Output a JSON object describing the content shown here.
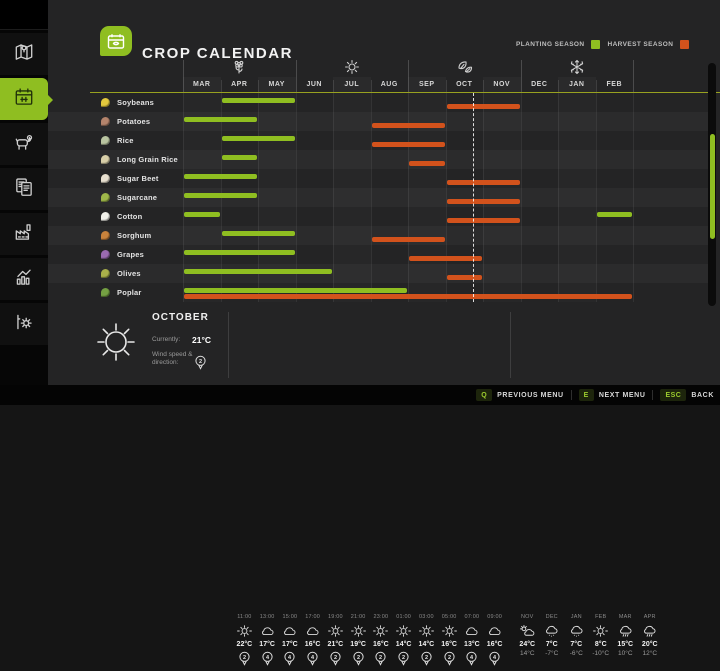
{
  "app": {
    "title": "CROP CALENDAR"
  },
  "colors": {
    "accent_green": "#8fbe21",
    "harvest_orange": "#d2521c",
    "panel_bg": "#242425",
    "sidebar_bg": "#060606"
  },
  "sidebar": {
    "items": [
      {
        "name": "map",
        "active": false
      },
      {
        "name": "calendar",
        "active": true
      },
      {
        "name": "animals",
        "active": false
      },
      {
        "name": "contracts",
        "active": false
      },
      {
        "name": "production",
        "active": false
      },
      {
        "name": "statistics",
        "active": false
      },
      {
        "name": "settings",
        "active": false
      }
    ]
  },
  "legend": {
    "planting": "PLANTING SEASON",
    "harvest": "HARVEST SEASON"
  },
  "months": [
    "MAR",
    "APR",
    "MAY",
    "JUN",
    "JUL",
    "AUG",
    "SEP",
    "OCT",
    "NOV",
    "DEC",
    "JAN",
    "FEB"
  ],
  "seasons": [
    {
      "icon": "spring-flower-icon",
      "month": "APR"
    },
    {
      "icon": "summer-sun-icon",
      "month": "JUL"
    },
    {
      "icon": "autumn-leaves-icon",
      "month": "OCT"
    },
    {
      "icon": "winter-snowflake-icon",
      "month": "JAN"
    }
  ],
  "current_marker": {
    "month": "OCT",
    "fraction": 0.73
  },
  "crops": [
    {
      "name": "Soybeans",
      "icon_color": "#e3c83e",
      "planting": [
        [
          "APR",
          "MAY"
        ]
      ],
      "harvest": [
        [
          "OCT",
          "NOV"
        ]
      ]
    },
    {
      "name": "Potatoes",
      "icon_color": "#b4846c",
      "planting": [
        [
          "MAR",
          "APR"
        ]
      ],
      "harvest": [
        [
          "AUG",
          "SEP"
        ]
      ]
    },
    {
      "name": "Rice",
      "icon_color": "#b9c4a0",
      "planting": [
        [
          "APR",
          "MAY"
        ]
      ],
      "harvest": [
        [
          "AUG",
          "SEP"
        ]
      ]
    },
    {
      "name": "Long Grain Rice",
      "icon_color": "#d8cfa8",
      "planting": [
        [
          "APR",
          "APR"
        ]
      ],
      "harvest": [
        [
          "SEP",
          "SEP"
        ]
      ]
    },
    {
      "name": "Sugar Beet",
      "icon_color": "#e8e0d0",
      "planting": [
        [
          "MAR",
          "APR"
        ]
      ],
      "harvest": [
        [
          "OCT",
          "NOV"
        ]
      ]
    },
    {
      "name": "Sugarcane",
      "icon_color": "#9fb84a",
      "planting": [
        [
          "MAR",
          "APR"
        ]
      ],
      "harvest": [
        [
          "OCT",
          "NOV"
        ]
      ]
    },
    {
      "name": "Cotton",
      "icon_color": "#f0f0ea",
      "planting": [
        [
          "MAR",
          "MAR"
        ],
        [
          "FEB",
          "FEB"
        ]
      ],
      "harvest": [
        [
          "OCT",
          "NOV"
        ]
      ]
    },
    {
      "name": "Sorghum",
      "icon_color": "#c8823c",
      "planting": [
        [
          "APR",
          "MAY"
        ]
      ],
      "harvest": [
        [
          "AUG",
          "SEP"
        ]
      ]
    },
    {
      "name": "Grapes",
      "icon_color": "#9a6ab0",
      "planting": [
        [
          "MAR",
          "MAY"
        ]
      ],
      "harvest": [
        [
          "SEP",
          "OCT"
        ]
      ]
    },
    {
      "name": "Olives",
      "icon_color": "#aab04a",
      "planting": [
        [
          "MAR",
          "JUN"
        ]
      ],
      "harvest": [
        [
          "OCT",
          "OCT"
        ]
      ]
    },
    {
      "name": "Poplar",
      "icon_color": "#74a043",
      "planting": [
        [
          "MAR",
          "AUG"
        ]
      ],
      "harvest": [
        [
          "MAR",
          "FEB"
        ]
      ]
    }
  ],
  "weather": {
    "month": "OCTOBER",
    "currently_label": "Currently:",
    "currently_value": "21°C",
    "wind_label": "Wind speed & direction:",
    "wind_value": "2",
    "hourly": [
      {
        "time": "11:00",
        "icon": "sun",
        "temp": "22°C",
        "wind": "2"
      },
      {
        "time": "13:00",
        "icon": "cloud",
        "temp": "17°C",
        "wind": "4"
      },
      {
        "time": "15:00",
        "icon": "cloud",
        "temp": "17°C",
        "wind": "4"
      },
      {
        "time": "17:00",
        "icon": "cloud",
        "temp": "16°C",
        "wind": "4"
      },
      {
        "time": "19:00",
        "icon": "sun",
        "temp": "21°C",
        "wind": "2"
      },
      {
        "time": "21:00",
        "icon": "sun",
        "temp": "19°C",
        "wind": "2"
      },
      {
        "time": "23:00",
        "icon": "sun",
        "temp": "16°C",
        "wind": "2"
      },
      {
        "time": "01:00",
        "icon": "sun",
        "temp": "14°C",
        "wind": "2"
      },
      {
        "time": "03:00",
        "icon": "sun",
        "temp": "14°C",
        "wind": "2"
      },
      {
        "time": "05:00",
        "icon": "sun",
        "temp": "16°C",
        "wind": "2"
      },
      {
        "time": "07:00",
        "icon": "cloud",
        "temp": "13°C",
        "wind": "4"
      },
      {
        "time": "09:00",
        "icon": "cloud",
        "temp": "16°C",
        "wind": "4"
      }
    ],
    "monthly": [
      {
        "month": "NOV",
        "icon": "partly-cloudy",
        "high": "24°C",
        "low": "14°C"
      },
      {
        "month": "DEC",
        "icon": "snow",
        "high": "7°C",
        "low": "-7°C"
      },
      {
        "month": "JAN",
        "icon": "snow",
        "high": "7°C",
        "low": "-6°C"
      },
      {
        "month": "FEB",
        "icon": "sun",
        "high": "8°C",
        "low": "-10°C"
      },
      {
        "month": "MAR",
        "icon": "rain",
        "high": "15°C",
        "low": "10°C"
      },
      {
        "month": "APR",
        "icon": "rain",
        "high": "20°C",
        "low": "12°C"
      }
    ]
  },
  "footer": {
    "keys": [
      {
        "key": "Q",
        "label": "PREVIOUS MENU"
      },
      {
        "key": "E",
        "label": "NEXT MENU"
      },
      {
        "key": "ESC",
        "label": "BACK"
      }
    ]
  }
}
